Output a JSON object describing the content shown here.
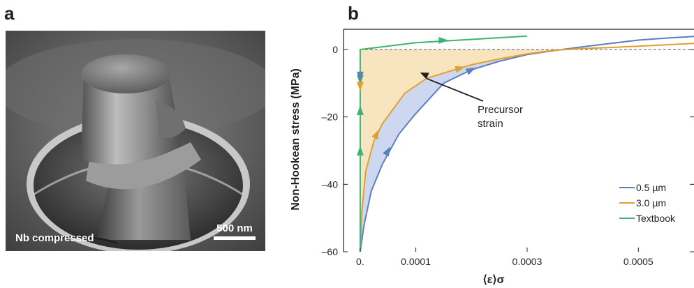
{
  "panel_a": {
    "letter": "a",
    "sample_label": "Nb compressed",
    "scale_bar_label": "500 nm"
  },
  "panel_b": {
    "letter": "b"
  },
  "chart_data": {
    "type": "line",
    "title": "",
    "xlabel": "⟨ε⟩σ",
    "ylabel": "Non-Hookean stress (MPa)",
    "xlim": [
      -3e-05,
      0.0006
    ],
    "ylim": [
      -60,
      6
    ],
    "x_ticks": [
      0,
      0.0001,
      0.0003,
      0.0005
    ],
    "x_tick_labels": [
      "0.",
      "0.0001",
      "0.0003",
      "0.0005"
    ],
    "y_ticks": [
      0,
      -20,
      -40,
      -60
    ],
    "y_tick_labels": [
      "0",
      "–20",
      "–40",
      "–60"
    ],
    "zero_reference_line": "dashed",
    "grid": false,
    "legend_position": "bottom-right",
    "annotation": {
      "text": [
        "Precursor",
        "strain"
      ],
      "points_to": [
        0.00011,
        -7
      ]
    },
    "series": [
      {
        "name": "0.5 µm",
        "color": "#5b7fbf",
        "points": [
          [
            0.0,
            -60
          ],
          [
            7e-06,
            -52
          ],
          [
            2e-05,
            -42
          ],
          [
            4e-05,
            -34
          ],
          [
            7e-05,
            -25
          ],
          [
            0.0001,
            -19
          ],
          [
            0.00015,
            -10
          ],
          [
            0.0002,
            -6
          ],
          [
            0.00025,
            -3.5
          ],
          [
            0.0003,
            -1.5
          ],
          [
            0.00035,
            -0.3
          ],
          [
            0.0004,
            0.8
          ],
          [
            0.00045,
            1.8
          ],
          [
            0.0005,
            2.8
          ],
          [
            0.00055,
            3.4
          ],
          [
            0.0006,
            3.9
          ]
        ]
      },
      {
        "name": "3.0 µm",
        "color": "#e0a030",
        "points": [
          [
            0.0,
            -60
          ],
          [
            3e-06,
            -48
          ],
          [
            1e-05,
            -36
          ],
          [
            2.5e-05,
            -27
          ],
          [
            4e-05,
            -22
          ],
          [
            8e-05,
            -13
          ],
          [
            0.00012,
            -8.5
          ],
          [
            0.00016,
            -6.5
          ],
          [
            0.0002,
            -4.5
          ],
          [
            0.00025,
            -2.8
          ],
          [
            0.0003,
            -1.3
          ],
          [
            0.00035,
            -0.2
          ],
          [
            0.0004,
            0.3
          ],
          [
            0.00045,
            0.6
          ],
          [
            0.0005,
            1.0
          ],
          [
            0.00055,
            1.4
          ],
          [
            0.0006,
            1.8
          ]
        ]
      },
      {
        "name": "Textbook",
        "color": "#3cb371",
        "points": [
          [
            0.0,
            -60
          ],
          [
            0.0,
            0
          ],
          [
            0.0001,
            2
          ],
          [
            0.0002,
            3
          ],
          [
            0.0003,
            4
          ]
        ]
      }
    ],
    "arrows": [
      {
        "series": "Textbook",
        "x": 0.0,
        "y": -9,
        "dir": "down"
      },
      {
        "series": "Textbook",
        "x": 0.0,
        "y": -18,
        "dir": "up"
      },
      {
        "series": "Textbook",
        "x": 0.0,
        "y": -30,
        "dir": "up"
      },
      {
        "series": "Textbook",
        "x": 0.00015,
        "y": 2.7,
        "dir": "right"
      },
      {
        "series": "0.5 µm",
        "x": 0.0,
        "y": -8,
        "dir": "down"
      },
      {
        "series": "0.5 µm",
        "x": 5e-05,
        "y": -30,
        "dir": "along"
      },
      {
        "series": "0.5 µm",
        "x": 0.0002,
        "y": -6,
        "dir": "along"
      },
      {
        "series": "3.0 µm",
        "x": 0.0,
        "y": -11,
        "dir": "down"
      },
      {
        "series": "3.0 µm",
        "x": 3e-05,
        "y": -25,
        "dir": "along"
      },
      {
        "series": "3.0 µm",
        "x": 0.00018,
        "y": -5.5,
        "dir": "along"
      }
    ]
  }
}
